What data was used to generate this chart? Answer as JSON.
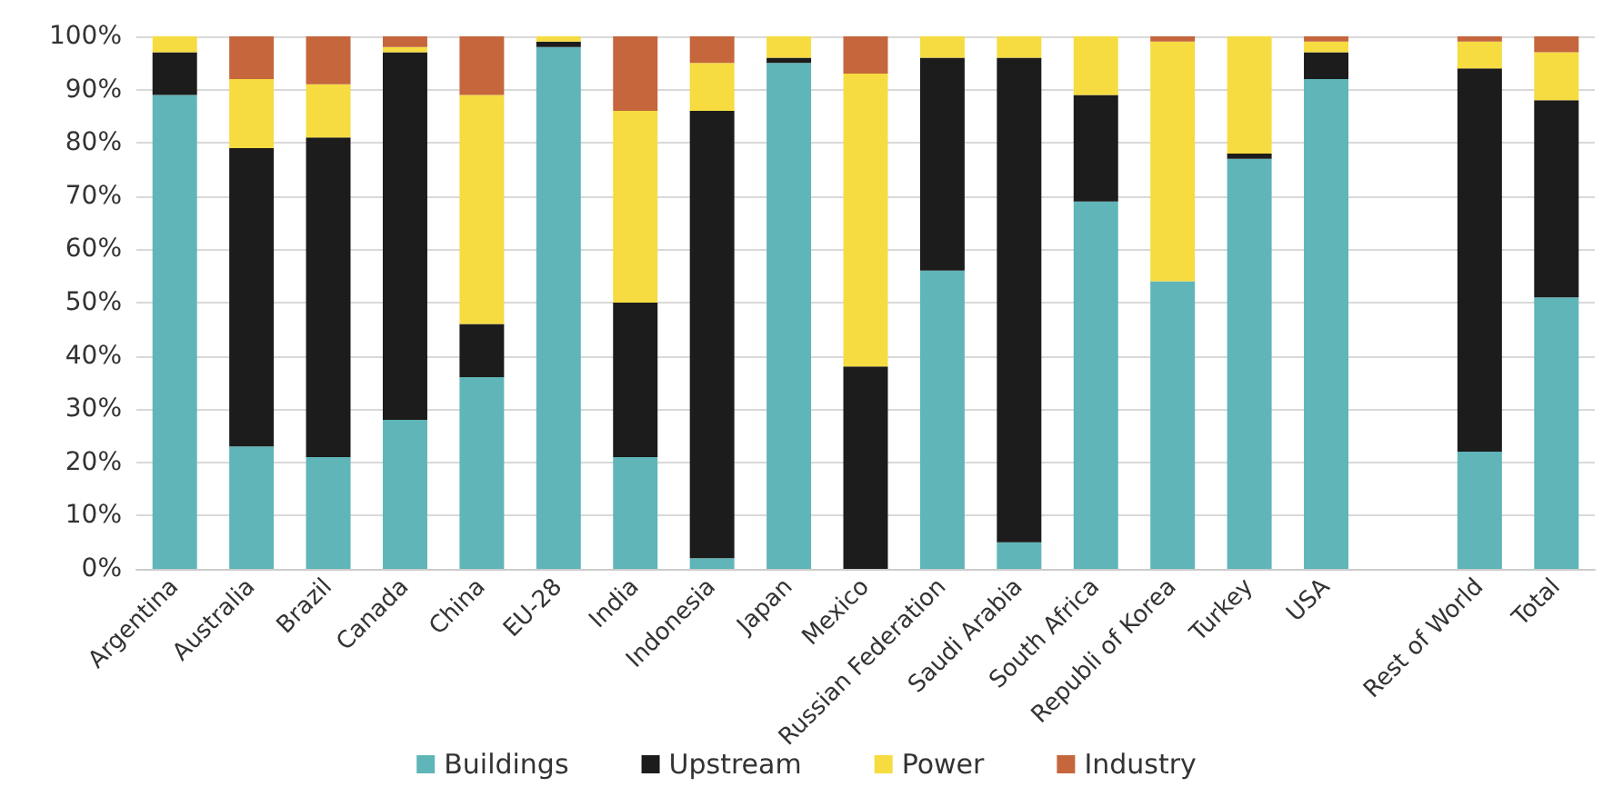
{
  "chart_data": {
    "type": "bar",
    "stacked": true,
    "categories": [
      "Argentina",
      "Australia",
      "Brazil",
      "Canada",
      "China",
      "EU-28",
      "India",
      "Indonesia",
      "Japan",
      "Mexico",
      "Russian Federation",
      "Saudi Arabia",
      "South Africa",
      "Republi of Korea",
      "Turkey",
      "USA",
      null,
      "Rest of World",
      "Total"
    ],
    "series": [
      {
        "name": "Buildings",
        "color": "#5fb5b7",
        "values": [
          89,
          23,
          21,
          28,
          36,
          98,
          21,
          2,
          95,
          0,
          56,
          5,
          69,
          54,
          77,
          92,
          null,
          22,
          51
        ]
      },
      {
        "name": "Upstream",
        "color": "#1c1c1c",
        "values": [
          8,
          56,
          60,
          69,
          10,
          1,
          29,
          84,
          1,
          38,
          40,
          91,
          20,
          0,
          1,
          5,
          null,
          72,
          37
        ]
      },
      {
        "name": "Power",
        "color": "#f6dc40",
        "values": [
          3,
          13,
          10,
          1,
          43,
          1,
          36,
          9,
          4,
          55,
          4,
          4,
          11,
          45,
          22,
          2,
          null,
          5,
          9
        ]
      },
      {
        "name": "Industry",
        "color": "#c5663c",
        "values": [
          0,
          8,
          9,
          2,
          11,
          0,
          14,
          5,
          0,
          7,
          0,
          0,
          0,
          1,
          0,
          1,
          null,
          1,
          3
        ]
      }
    ],
    "ylim": [
      0,
      100
    ],
    "yticks": [
      {
        "value": 0,
        "label": "0%"
      },
      {
        "value": 10,
        "label": "10%"
      },
      {
        "value": 20,
        "label": "20%"
      },
      {
        "value": 30,
        "label": "30%"
      },
      {
        "value": 40,
        "label": "40%"
      },
      {
        "value": 50,
        "label": "50%"
      },
      {
        "value": 60,
        "label": "60%"
      },
      {
        "value": 70,
        "label": "70%"
      },
      {
        "value": 80,
        "label": "80%"
      },
      {
        "value": 90,
        "label": "90%"
      },
      {
        "value": 100,
        "label": "100%"
      }
    ],
    "grid": "y",
    "legend": "bottom"
  }
}
